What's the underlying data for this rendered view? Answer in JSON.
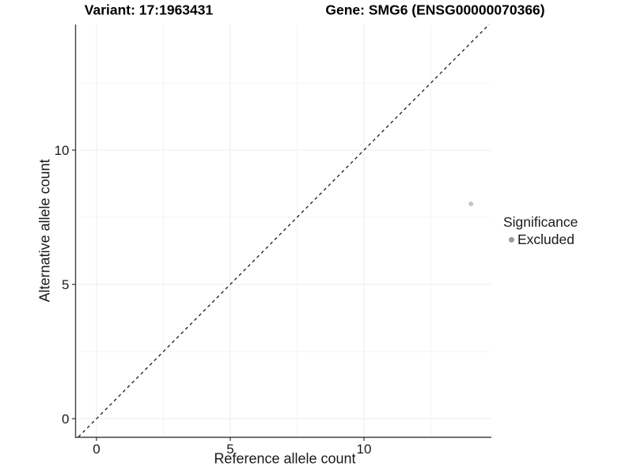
{
  "chart_data": {
    "type": "scatter",
    "titles": {
      "left": "Variant: 17:1963431",
      "right": "Gene: SMG6 (ENSG00000070366)"
    },
    "xlabel": "Reference allele count",
    "ylabel": "Alternative allele count",
    "x_ticks": [
      0,
      5,
      10
    ],
    "y_ticks": [
      0,
      5,
      10
    ],
    "x_minor_gridlines": [
      2.5,
      7.5,
      12.5
    ],
    "y_minor_gridlines": [
      2.5,
      7.5,
      12.5
    ],
    "xlim": [
      -0.77,
      14.76
    ],
    "ylim": [
      -0.68,
      14.68
    ],
    "grid": "major and minor gridlines, very light gray, white panel background",
    "points": [
      {
        "x": 14,
        "y": 8,
        "significance": "Excluded"
      }
    ],
    "identity_line": {
      "slope": 1,
      "intercept": 0,
      "style": "dashed"
    },
    "legend": {
      "title": "Significance",
      "position": "right",
      "items": [
        {
          "label": "Excluded",
          "color": "#9c9c9c"
        }
      ]
    },
    "colors": {
      "point": "#c5c5c5",
      "legend_point": "#9c9c9c",
      "grid_major": "#ededed",
      "grid_minor": "#f4f4f4",
      "axis_line": "#404040",
      "tick": "#333333",
      "dashed_line": "#1a1a1a"
    }
  }
}
